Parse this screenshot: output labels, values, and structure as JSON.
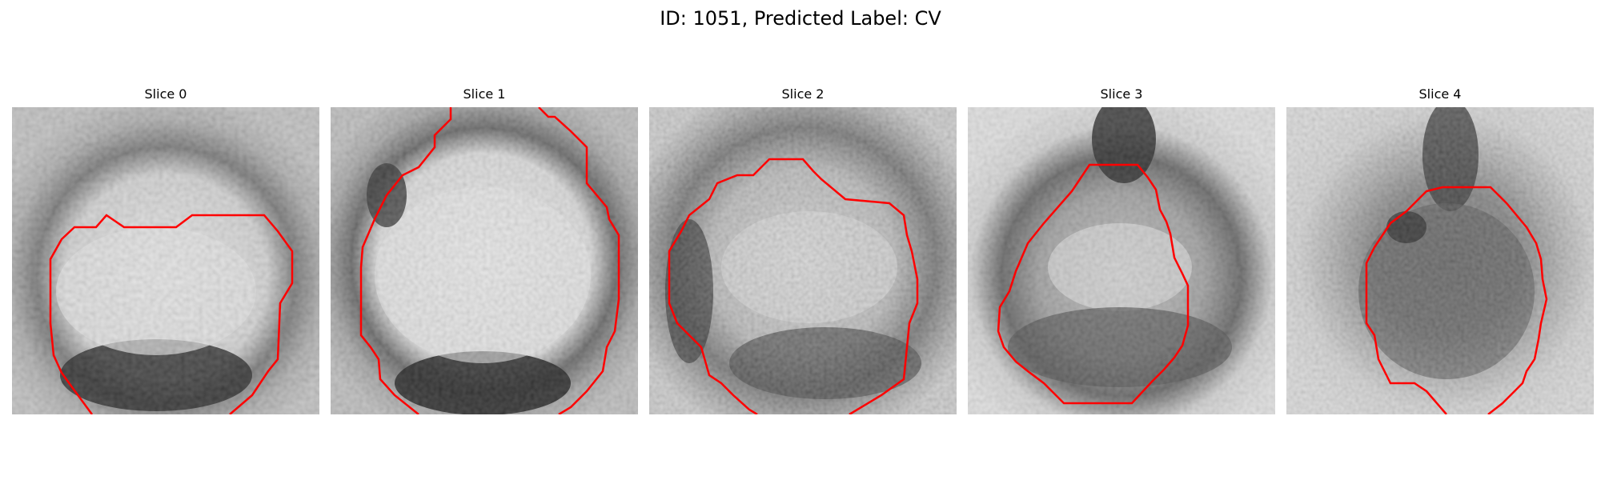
{
  "figure": {
    "title": "ID: 1051, Predicted Label: CV"
  },
  "panels": [
    {
      "title": "Slice 0"
    },
    {
      "title": "Slice 1"
    },
    {
      "title": "Slice 2"
    },
    {
      "title": "Slice 3"
    },
    {
      "title": "Slice 4"
    }
  ],
  "colors": {
    "contour": "#ff0000",
    "background": "#ffffff"
  }
}
